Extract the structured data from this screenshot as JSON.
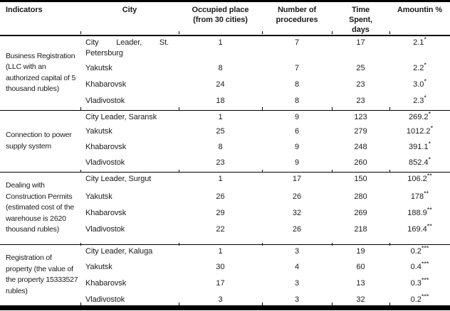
{
  "table": {
    "headers": [
      {
        "lines": [
          "Indicators"
        ]
      },
      {
        "lines": [
          "City"
        ]
      },
      {
        "lines": [
          "Occupied place",
          "(from 30 cities)"
        ]
      },
      {
        "lines": [
          "Number of",
          "procedures"
        ]
      },
      {
        "lines": [
          "Time",
          "Spent,",
          "days"
        ]
      },
      {
        "lines": [
          "Amountin %"
        ]
      }
    ],
    "sections": [
      {
        "indicator_lines": [
          "Business Registration",
          "(LLC with an",
          "authorized capital of 5",
          "thousand rubles)"
        ],
        "rows": [
          {
            "city": "City Leader, St. Petersburg",
            "place": "1",
            "procedures": "7",
            "time": "17",
            "amount": "2.1",
            "marks": "*"
          },
          {
            "city": "Yakutsk",
            "place": "8",
            "procedures": "7",
            "time": "25",
            "amount": "2.2",
            "marks": "*"
          },
          {
            "city": "Khabarovsk",
            "place": "24",
            "procedures": "8",
            "time": "23",
            "amount": "3.0",
            "marks": "*"
          },
          {
            "city": "Vladivostok",
            "place": "18",
            "procedures": "8",
            "time": "23",
            "amount": "2.3",
            "marks": "*"
          }
        ]
      },
      {
        "indicator_lines": [
          "Connection to power",
          "supply system"
        ],
        "rows": [
          {
            "city": "City Leader, Saransk",
            "place": "1",
            "procedures": "9",
            "time": "123",
            "amount": "269.2",
            "marks": "*"
          },
          {
            "city": "Yakutsk",
            "place": "25",
            "procedures": "6",
            "time": "279",
            "amount": "1012.2",
            "marks": "*"
          },
          {
            "city": "Khabarovsk",
            "place": "8",
            "procedures": "9",
            "time": "248",
            "amount": "391.1",
            "marks": "*"
          },
          {
            "city": "Vladivostok",
            "place": "23",
            "procedures": "9",
            "time": "260",
            "amount": "852.4",
            "marks": "*"
          }
        ]
      },
      {
        "indicator_lines": [
          "Dealing with",
          "Construction Permits",
          "(estimated cost of the",
          "warehouse is 2620",
          "thousand rubles)"
        ],
        "rows": [
          {
            "city": "City Leader, Surgut",
            "place": "1",
            "procedures": "17",
            "time": "150",
            "amount": "106.2",
            "marks": "**"
          },
          {
            "city": "Yakutsk",
            "place": "26",
            "procedures": "26",
            "time": "280",
            "amount": "178",
            "marks": "**"
          },
          {
            "city": "Khabarovsk",
            "place": "29",
            "procedures": "32",
            "time": "269",
            "amount": "188.9",
            "marks": "**"
          },
          {
            "city": "Vladivostok",
            "place": "22",
            "procedures": "26",
            "time": "218",
            "amount": "169.4",
            "marks": "**"
          }
        ]
      },
      {
        "indicator_lines": [
          "Registration of",
          "property (the value of",
          "the property 15333527",
          "rubles)"
        ],
        "rows": [
          {
            "city": "City Leader, Kaluga",
            "place": "1",
            "procedures": "3",
            "time": "19",
            "amount": "0.2",
            "marks": "***"
          },
          {
            "city": "Yakutsk",
            "place": "30",
            "procedures": "4",
            "time": "60",
            "amount": "0.4",
            "marks": "***"
          },
          {
            "city": "Khabarovsk",
            "place": "17",
            "procedures": "3",
            "time": "13",
            "amount": "0.3",
            "marks": "***"
          },
          {
            "city": "Vladivostok",
            "place": "3",
            "procedures": "3",
            "time": "32",
            "amount": "0.2",
            "marks": "***"
          }
        ]
      }
    ]
  }
}
